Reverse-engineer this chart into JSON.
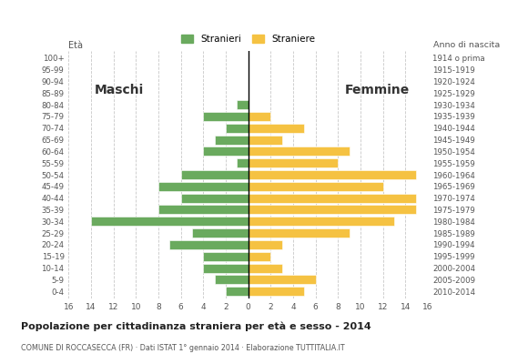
{
  "age_groups": [
    "0-4",
    "5-9",
    "10-14",
    "15-19",
    "20-24",
    "25-29",
    "30-34",
    "35-39",
    "40-44",
    "45-49",
    "50-54",
    "55-59",
    "60-64",
    "65-69",
    "70-74",
    "75-79",
    "80-84",
    "85-89",
    "90-94",
    "95-99",
    "100+"
  ],
  "birth_years": [
    "2010-2014",
    "2005-2009",
    "2000-2004",
    "1995-1999",
    "1990-1994",
    "1985-1989",
    "1980-1984",
    "1975-1979",
    "1970-1974",
    "1965-1969",
    "1960-1964",
    "1955-1959",
    "1950-1954",
    "1945-1949",
    "1940-1944",
    "1935-1939",
    "1930-1934",
    "1925-1929",
    "1920-1924",
    "1915-1919",
    "1914 o prima"
  ],
  "males": [
    2,
    3,
    4,
    4,
    7,
    5,
    14,
    8,
    6,
    8,
    6,
    1,
    4,
    3,
    2,
    4,
    1,
    0,
    0,
    0,
    0
  ],
  "females": [
    5,
    6,
    3,
    2,
    3,
    9,
    13,
    15,
    15,
    12,
    15,
    8,
    9,
    3,
    5,
    2,
    0,
    0,
    0,
    0,
    0
  ],
  "male_color": "#6aaa5e",
  "female_color": "#f5c242",
  "bg_color": "#ffffff",
  "grid_color": "#c8c8c8",
  "title": "Popolazione per cittadinanza straniera per età e sesso - 2014",
  "subtitle": "COMUNE DI ROCCASECCA (FR) · Dati ISTAT 1° gennaio 2014 · Elaborazione TUTTITALIA.IT",
  "legend_male": "Stranieri",
  "legend_female": "Straniere",
  "label_left": "Maschi",
  "label_right": "Femmine",
  "eta_label": "Età",
  "anno_label": "Anno di nascita",
  "xlim": 16
}
